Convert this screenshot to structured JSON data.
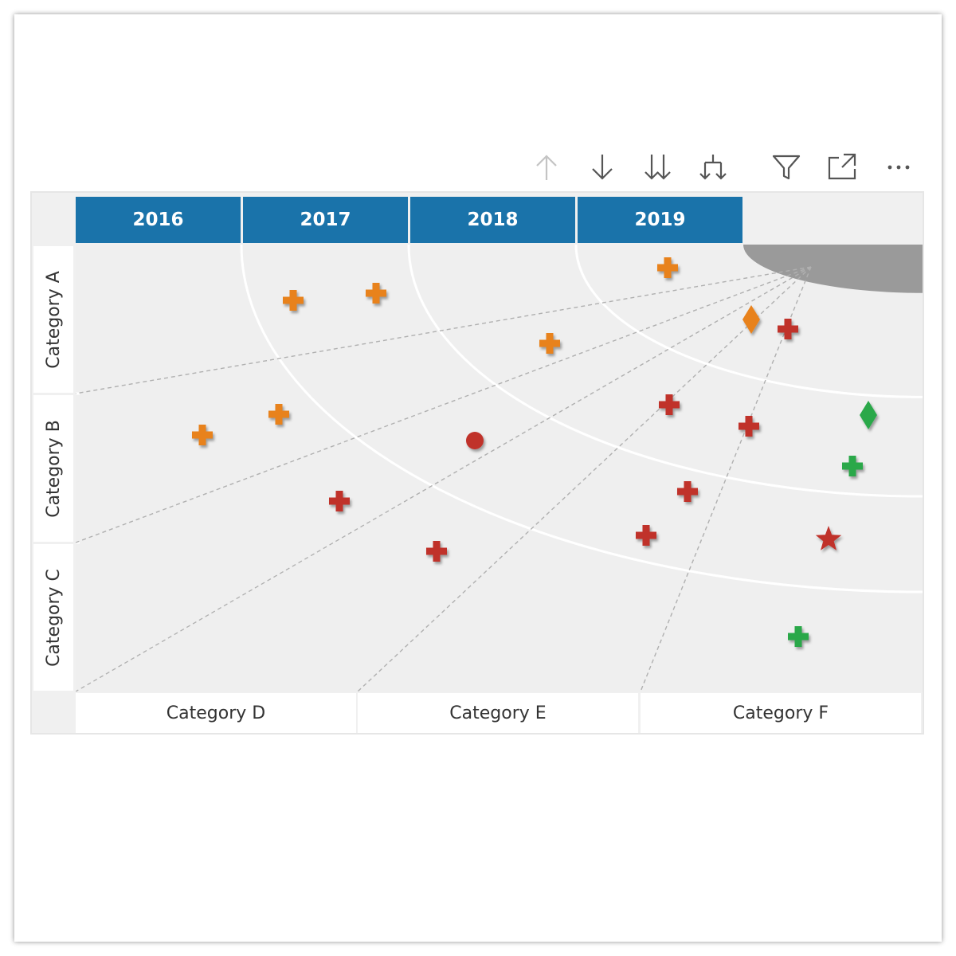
{
  "toolbar": {
    "icons": [
      "arrow-up-icon",
      "arrow-down-icon",
      "double-arrow-down-icon",
      "expand-hierarchy-icon",
      "filter-icon",
      "focus-mode-icon",
      "more-options-icon"
    ]
  },
  "colors": {
    "header": "#1a73aa",
    "orange": "#e8821e",
    "red": "#c0302a",
    "green": "#2aa84a",
    "gray_corner": "#9a9a9a",
    "background": "#efefef"
  },
  "chart_data": {
    "type": "radar",
    "rings": [
      "2016",
      "2017",
      "2018",
      "2019"
    ],
    "rows": [
      "Category A",
      "Category B",
      "Category C"
    ],
    "columns": [
      "Category D",
      "Category E",
      "Category F"
    ],
    "shapes": {
      "cross": "plus",
      "diamond": "diamond",
      "circle": "circle",
      "star": "star"
    },
    "points": [
      {
        "shape": "cross",
        "color": "orange",
        "ring": "2017",
        "row": "Category A",
        "column": "Category D"
      },
      {
        "shape": "cross",
        "color": "orange",
        "ring": "2017",
        "row": "Category A",
        "column": "Category D"
      },
      {
        "shape": "cross",
        "color": "orange",
        "ring": "2018",
        "row": "Category A",
        "column": "Category E"
      },
      {
        "shape": "cross",
        "color": "orange",
        "ring": "2019",
        "row": "Category A",
        "column": "Category F"
      },
      {
        "shape": "diamond",
        "color": "orange",
        "ring": "2019",
        "row": "Category A",
        "column": "Category F"
      },
      {
        "shape": "cross",
        "color": "red",
        "ring": "2019",
        "row": "Category A",
        "column": "Category F"
      },
      {
        "shape": "cross",
        "color": "orange",
        "ring": "2016",
        "row": "Category B",
        "column": "Category D"
      },
      {
        "shape": "cross",
        "color": "orange",
        "ring": "2016",
        "row": "Category B",
        "column": "Category D"
      },
      {
        "shape": "circle",
        "color": "red",
        "ring": "2017",
        "row": "Category B",
        "column": "Category E"
      },
      {
        "shape": "cross",
        "color": "red",
        "ring": "2016",
        "row": "Category B",
        "column": "Category D"
      },
      {
        "shape": "cross",
        "color": "red",
        "ring": "2018",
        "row": "Category B",
        "column": "Category E"
      },
      {
        "shape": "cross",
        "color": "red",
        "ring": "2018",
        "row": "Category B",
        "column": "Category F"
      },
      {
        "shape": "diamond",
        "color": "green",
        "ring": "2019",
        "row": "Category B",
        "column": "Category F"
      },
      {
        "shape": "cross",
        "color": "green",
        "ring": "2018",
        "row": "Category B",
        "column": "Category F"
      },
      {
        "shape": "cross",
        "color": "red",
        "ring": "2017",
        "row": "Category B",
        "column": "Category E"
      },
      {
        "shape": "cross",
        "color": "red",
        "ring": "2016",
        "row": "Category C",
        "column": "Category E"
      },
      {
        "shape": "cross",
        "color": "red",
        "ring": "2017",
        "row": "Category B",
        "column": "Category E"
      },
      {
        "shape": "star",
        "color": "red",
        "ring": "2017",
        "row": "Category B",
        "column": "Category F"
      },
      {
        "shape": "cross",
        "color": "green",
        "ring": "2016",
        "row": "Category C",
        "column": "Category F"
      }
    ]
  }
}
